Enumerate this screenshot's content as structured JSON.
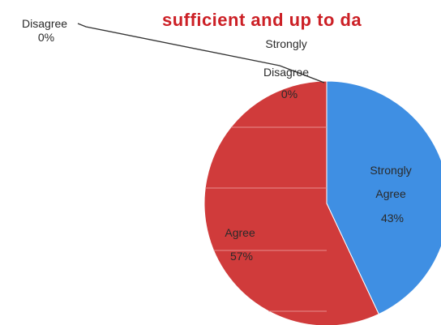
{
  "chart_data": {
    "type": "pie",
    "title": "sufficient and up to da",
    "slices": [
      {
        "label": "Strongly Agree",
        "value": 43,
        "display": "43%",
        "color": "#3f8fe3"
      },
      {
        "label": "Agree",
        "value": 57,
        "display": "57%",
        "color": "#d03b3b"
      },
      {
        "label": "Disagree",
        "value": 0,
        "display": "0%",
        "color": "#8a8a8a"
      },
      {
        "label": "Strongly Disagree",
        "value": 0,
        "display": "0%",
        "color": "#7a4fa0"
      }
    ],
    "legend": "none"
  }
}
